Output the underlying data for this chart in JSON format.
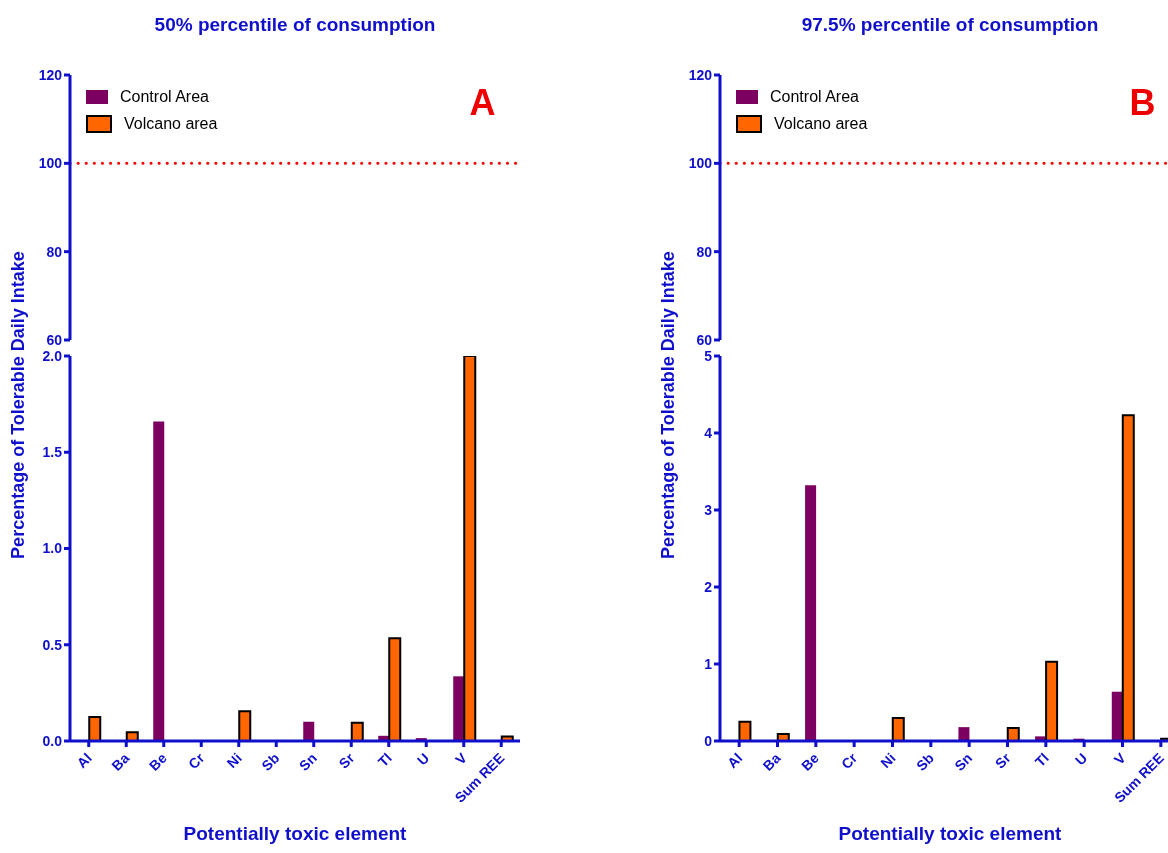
{
  "chart_data": [
    {
      "type": "bar",
      "title": "50% percentile of consumption",
      "categories": [
        null,
        null,
        null,
        null,
        null,
        null,
        null,
        null,
        null,
        null,
        null,
        null
      ],
      "series": [
        {
          "name": "Control Area",
          "color": "#7b0060",
          "values": [
            null,
            null,
            null,
            null,
            null,
            null,
            null,
            null,
            null,
            null,
            null,
            null
          ]
        },
        {
          "name": "Volcano area",
          "color": "#ff6600",
          "values": [
            null,
            null,
            null,
            null,
            null,
            null,
            null,
            null,
            null,
            null,
            null,
            null
          ]
        }
      ],
      "ylim": [
        60,
        120
      ],
      "yticks": [
        60,
        80,
        100,
        120
      ],
      "tick_labels": "y",
      "legend": "top left",
      "ref_lines": [
        {
          "axis": "y",
          "value": 100,
          "color": "#ff0000",
          "line_style": "dotted"
        }
      ],
      "annotations": [
        "A"
      ]
    },
    {
      "type": "bar",
      "xlabel": "Potentially toxic element",
      "ylabel": "Percentage of Tolerable Daily Intake",
      "categories": [
        "Al",
        "Ba",
        "Be",
        "Cr",
        "Ni",
        "Sb",
        "Sn",
        "Sr",
        "Tl",
        "U",
        "V",
        "Sum REE"
      ],
      "series": [
        {
          "color": "#7b0060",
          "values": [
            0,
            0,
            1.66,
            0,
            0,
            0,
            0.1,
            0,
            0.027,
            0.015,
            0.336,
            0
          ]
        },
        {
          "color": "#ff6600",
          "values": [
            0.125,
            0.045,
            0,
            0,
            0.155,
            0,
            0,
            0.095,
            0.534,
            0,
            2.0,
            0.024
          ]
        }
      ],
      "ylim": [
        0,
        2
      ],
      "yticks": [
        {
          "value": 0,
          "label": "0.0"
        },
        {
          "value": 0.5,
          "label": "0.5"
        },
        {
          "value": 1,
          "label": "1.0"
        },
        {
          "value": 1.5,
          "label": "1.5"
        },
        {
          "value": 2,
          "label": "2.0"
        }
      ]
    },
    {
      "type": "bar",
      "title": "97.5% percentile of consumption",
      "categories": [
        null,
        null,
        null,
        null,
        null,
        null,
        null,
        null,
        null,
        null,
        null,
        null
      ],
      "series": [
        {
          "name": "Control Area",
          "color": "#7b0060",
          "values": [
            null,
            null,
            null,
            null,
            null,
            null,
            null,
            null,
            null,
            null,
            null,
            null
          ]
        },
        {
          "name": "Volcano area",
          "color": "#ff6600",
          "values": [
            null,
            null,
            null,
            null,
            null,
            null,
            null,
            null,
            null,
            null,
            null,
            null
          ]
        }
      ],
      "ylim": [
        60,
        120
      ],
      "yticks": [
        60,
        80,
        100,
        120
      ],
      "tick_labels": "y",
      "legend": "top left",
      "ref_lines": [
        {
          "axis": "y",
          "value": 100,
          "color": "#ff0000",
          "line_style": "dotted"
        }
      ],
      "annotations": [
        "B"
      ]
    },
    {
      "type": "bar",
      "xlabel": "Potentially toxic element",
      "ylabel": "Percentage of Tolerable Daily Intake",
      "categories": [
        "Al",
        "Ba",
        "Be",
        "Cr",
        "Ni",
        "Sb",
        "Sn",
        "Sr",
        "Tl",
        "U",
        "V",
        "Sum REE"
      ],
      "series": [
        {
          "color": "#7b0060",
          "values": [
            0,
            0,
            3.32,
            0,
            0,
            0,
            0.18,
            0,
            0.06,
            0.03,
            0.64,
            0
          ]
        },
        {
          "color": "#ff6600",
          "values": [
            0.25,
            0.09,
            0,
            0,
            0.3,
            0,
            0,
            0.17,
            1.03,
            0,
            4.23,
            0.03
          ]
        }
      ],
      "ylim": [
        0,
        5
      ],
      "yticks": [
        0,
        1,
        2,
        3,
        4,
        5
      ]
    }
  ]
}
